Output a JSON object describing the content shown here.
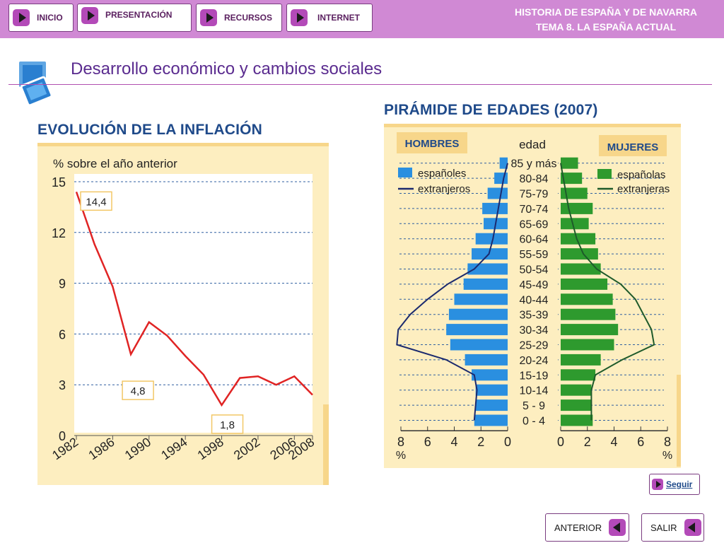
{
  "nav": {
    "inicio": "INICIO",
    "presentacion": "PRESENTACIÓN",
    "recursos": "RECURSOS",
    "internet": "INTERNET"
  },
  "header": {
    "line1": "HISTORIA DE ESPAÑA Y DE NAVARRA",
    "line2": "TEMA 8. LA ESPAÑA ACTUAL"
  },
  "page_title": "Desarrollo económico y cambios sociales",
  "buttons": {
    "seguir": "Seguir",
    "anterior": "ANTERIOR",
    "salir": "SALIR"
  },
  "chart_data": [
    {
      "type": "line",
      "title": "EVOLUCIÓN DE LA INFLACIÓN",
      "ylabel": "% sobre el año anterior",
      "xlabel": "",
      "ylim": [
        0,
        15
      ],
      "yticks": [
        "0",
        "3",
        "6",
        "9",
        "12",
        "15"
      ],
      "xticks": [
        "1982",
        "1986",
        "1990",
        "1994",
        "1998",
        "2002",
        "2006",
        "2008"
      ],
      "x": [
        1982,
        1984,
        1986,
        1988,
        1990,
        1992,
        1994,
        1996,
        1998,
        2000,
        2002,
        2004,
        2006,
        2008
      ],
      "values": [
        14.4,
        11.3,
        8.8,
        4.8,
        6.7,
        5.9,
        4.7,
        3.6,
        1.8,
        3.4,
        3.5,
        3.0,
        3.5,
        2.4
      ],
      "annotations": [
        {
          "x": 1982,
          "label": "14,4"
        },
        {
          "x": 1988,
          "label": "4,8"
        },
        {
          "x": 1998,
          "label": "1,8"
        }
      ],
      "grid": "horizontal dashed",
      "line_color": "#e02424"
    },
    {
      "type": "bar",
      "subtype": "population-pyramid",
      "title": "PIRÁMIDE DE EDADES (2007)",
      "left_label": "HOMBRES",
      "right_label": "MUJERES",
      "center_label": "edad",
      "xlim": [
        0,
        8
      ],
      "xticks": [
        "8",
        "6",
        "4",
        "2",
        "0"
      ],
      "xticks_right": [
        "0",
        "2",
        "4",
        "6",
        "8"
      ],
      "unit_label": "%",
      "legend_left": [
        {
          "label": "españoles",
          "color": "#2a8fe0",
          "kind": "bar"
        },
        {
          "label": "extranjeros",
          "color": "#1b2a6e",
          "kind": "line"
        }
      ],
      "legend_right": [
        {
          "label": "españolas",
          "color": "#2e9a2e",
          "kind": "bar"
        },
        {
          "label": "extranjeras",
          "color": "#1e5a2a",
          "kind": "line"
        }
      ],
      "categories": [
        "85 y más",
        "80-84",
        "75-79",
        "70-74",
        "65-69",
        "60-64",
        "55-59",
        "50-54",
        "45-49",
        "40-44",
        "35-39",
        "30-34",
        "25-29",
        "20-24",
        "15-19",
        "10-14",
        "5 - 9",
        "0 - 4"
      ],
      "series": [
        {
          "name": "españoles",
          "side": "left",
          "values": [
            0.6,
            1.0,
            1.5,
            1.9,
            1.8,
            2.4,
            2.7,
            3.0,
            3.3,
            4.0,
            4.4,
            4.6,
            4.3,
            3.2,
            2.7,
            2.4,
            2.4,
            2.5
          ]
        },
        {
          "name": "extranjeros",
          "side": "left",
          "values": [
            0.0,
            0.3,
            0.5,
            0.7,
            0.9,
            1.1,
            1.4,
            2.5,
            4.5,
            6.0,
            7.3,
            8.2,
            8.3,
            4.6,
            2.5,
            2.3,
            2.4,
            2.5
          ]
        },
        {
          "name": "españolas",
          "side": "right",
          "values": [
            1.3,
            1.6,
            2.0,
            2.4,
            2.1,
            2.6,
            2.8,
            3.0,
            3.5,
            3.9,
            4.1,
            4.3,
            4.0,
            3.0,
            2.6,
            2.3,
            2.3,
            2.4
          ]
        },
        {
          "name": "extranjeras",
          "side": "right",
          "values": [
            0.0,
            0.2,
            0.4,
            0.6,
            0.9,
            1.2,
            1.7,
            2.7,
            4.5,
            5.6,
            6.2,
            6.8,
            7.0,
            4.6,
            2.6,
            2.3,
            2.3,
            2.3
          ]
        }
      ]
    }
  ]
}
